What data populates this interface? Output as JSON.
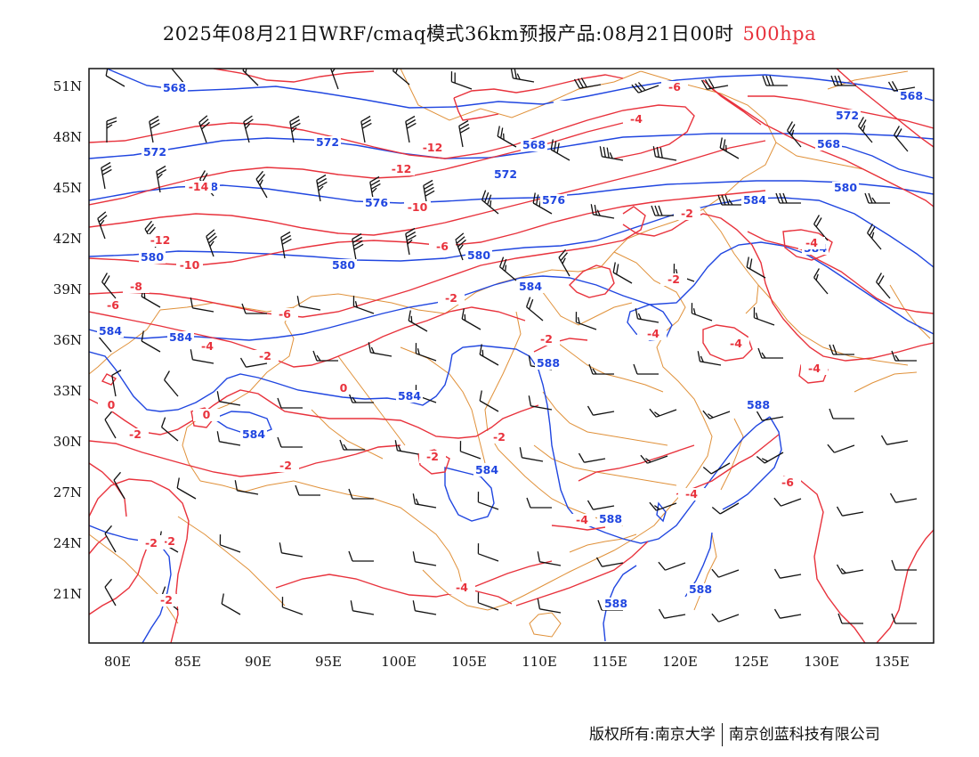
{
  "title": {
    "main": "2025年08月21日WRF/cmaq模式36km预报产品:08月21日00时",
    "level": "500hpa"
  },
  "colors": {
    "height_contour": "#2046e0",
    "temperature_contour": "#e8323c",
    "boundary": "#e0913a",
    "wind_barb": "#111111",
    "level_text": "#e8323c"
  },
  "axes": {
    "x_ticks": [
      "80E",
      "85E",
      "90E",
      "95E",
      "100E",
      "105E",
      "110E",
      "115E",
      "120E",
      "125E",
      "130E",
      "135E"
    ],
    "y_ticks": [
      "51N",
      "48N",
      "45N",
      "42N",
      "39N",
      "36N",
      "33N",
      "30N",
      "27N",
      "24N",
      "21N"
    ]
  },
  "height_contours": [
    {
      "value": 568,
      "label": "568"
    },
    {
      "value": 572,
      "label": "572"
    },
    {
      "value": 576,
      "label": "576"
    },
    {
      "value": 580,
      "label": "580"
    },
    {
      "value": 584,
      "label": "584"
    },
    {
      "value": 588,
      "label": "588"
    }
  ],
  "temperature_contours": [
    {
      "value": -14,
      "label": "-14"
    },
    {
      "value": -12,
      "label": "-12"
    },
    {
      "value": -10,
      "label": "-10"
    },
    {
      "value": -8,
      "label": "-8"
    },
    {
      "value": -6,
      "label": "-6"
    },
    {
      "value": -4,
      "label": "-4"
    },
    {
      "value": -2,
      "label": "-2"
    },
    {
      "value": 0,
      "label": "0"
    }
  ],
  "footer": {
    "copyright": "版权所有:南京大学",
    "company": "南京创蓝科技有限公司"
  }
}
